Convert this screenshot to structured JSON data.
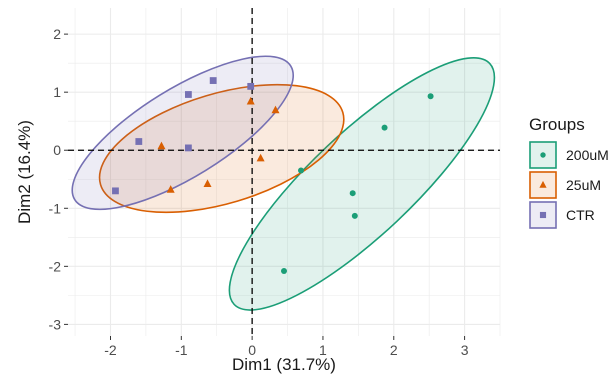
{
  "chart_data": {
    "type": "scatter",
    "xlabel": "Dim1 (31.7%)",
    "ylabel": "Dim2 (16.4%)",
    "xlim": [
      -2.6,
      3.5
    ],
    "ylim": [
      -3.2,
      2.45
    ],
    "x_ticks": [
      -2,
      -1,
      0,
      1,
      2,
      3
    ],
    "y_ticks": [
      -3,
      -2,
      -1,
      0,
      1,
      2
    ],
    "x_tick_labels": [
      "-2",
      "-1",
      "0",
      "1",
      "2",
      "3"
    ],
    "y_tick_labels": [
      "-3",
      "-2",
      "-1",
      "0",
      "1",
      "2"
    ],
    "grid": true,
    "reference_lines": {
      "x": 0,
      "y": 0,
      "style": "dashed"
    },
    "legend": {
      "title": "Groups",
      "position": "right",
      "entries": [
        "200uM",
        "25uM",
        "CTR"
      ]
    },
    "series": [
      {
        "name": "200uM",
        "marker": "circle",
        "color": "#1b9e77",
        "points": [
          [
            2.52,
            0.93
          ],
          [
            1.87,
            0.39
          ],
          [
            1.42,
            -0.74
          ],
          [
            1.45,
            -1.13
          ],
          [
            0.69,
            -0.35
          ],
          [
            0.45,
            -2.08
          ]
        ],
        "ellipse": {
          "center": [
            1.55,
            -0.58
          ],
          "semi_major": 2.75,
          "semi_minor": 0.78,
          "angle_deg": 49
        }
      },
      {
        "name": "25uM",
        "marker": "triangle",
        "color": "#d95f02",
        "points": [
          [
            -1.28,
            0.07
          ],
          [
            -1.15,
            -0.68
          ],
          [
            -0.63,
            -0.58
          ],
          [
            -0.02,
            0.84
          ],
          [
            0.33,
            0.69
          ],
          [
            0.12,
            -0.14
          ]
        ],
        "ellipse": {
          "center": [
            -0.43,
            0.03
          ],
          "semi_major": 1.82,
          "semi_minor": 0.92,
          "angle_deg": 20
        }
      },
      {
        "name": "CTR",
        "marker": "square",
        "color": "#7570b3",
        "points": [
          [
            -1.93,
            -0.7
          ],
          [
            -1.6,
            0.15
          ],
          [
            -0.9,
            0.96
          ],
          [
            -0.55,
            1.2
          ],
          [
            -0.02,
            1.1
          ],
          [
            -0.9,
            0.04
          ]
        ],
        "ellipse": {
          "center": [
            -0.98,
            0.3
          ],
          "semi_major": 1.91,
          "semi_minor": 0.7,
          "angle_deg": 37
        }
      }
    ]
  }
}
